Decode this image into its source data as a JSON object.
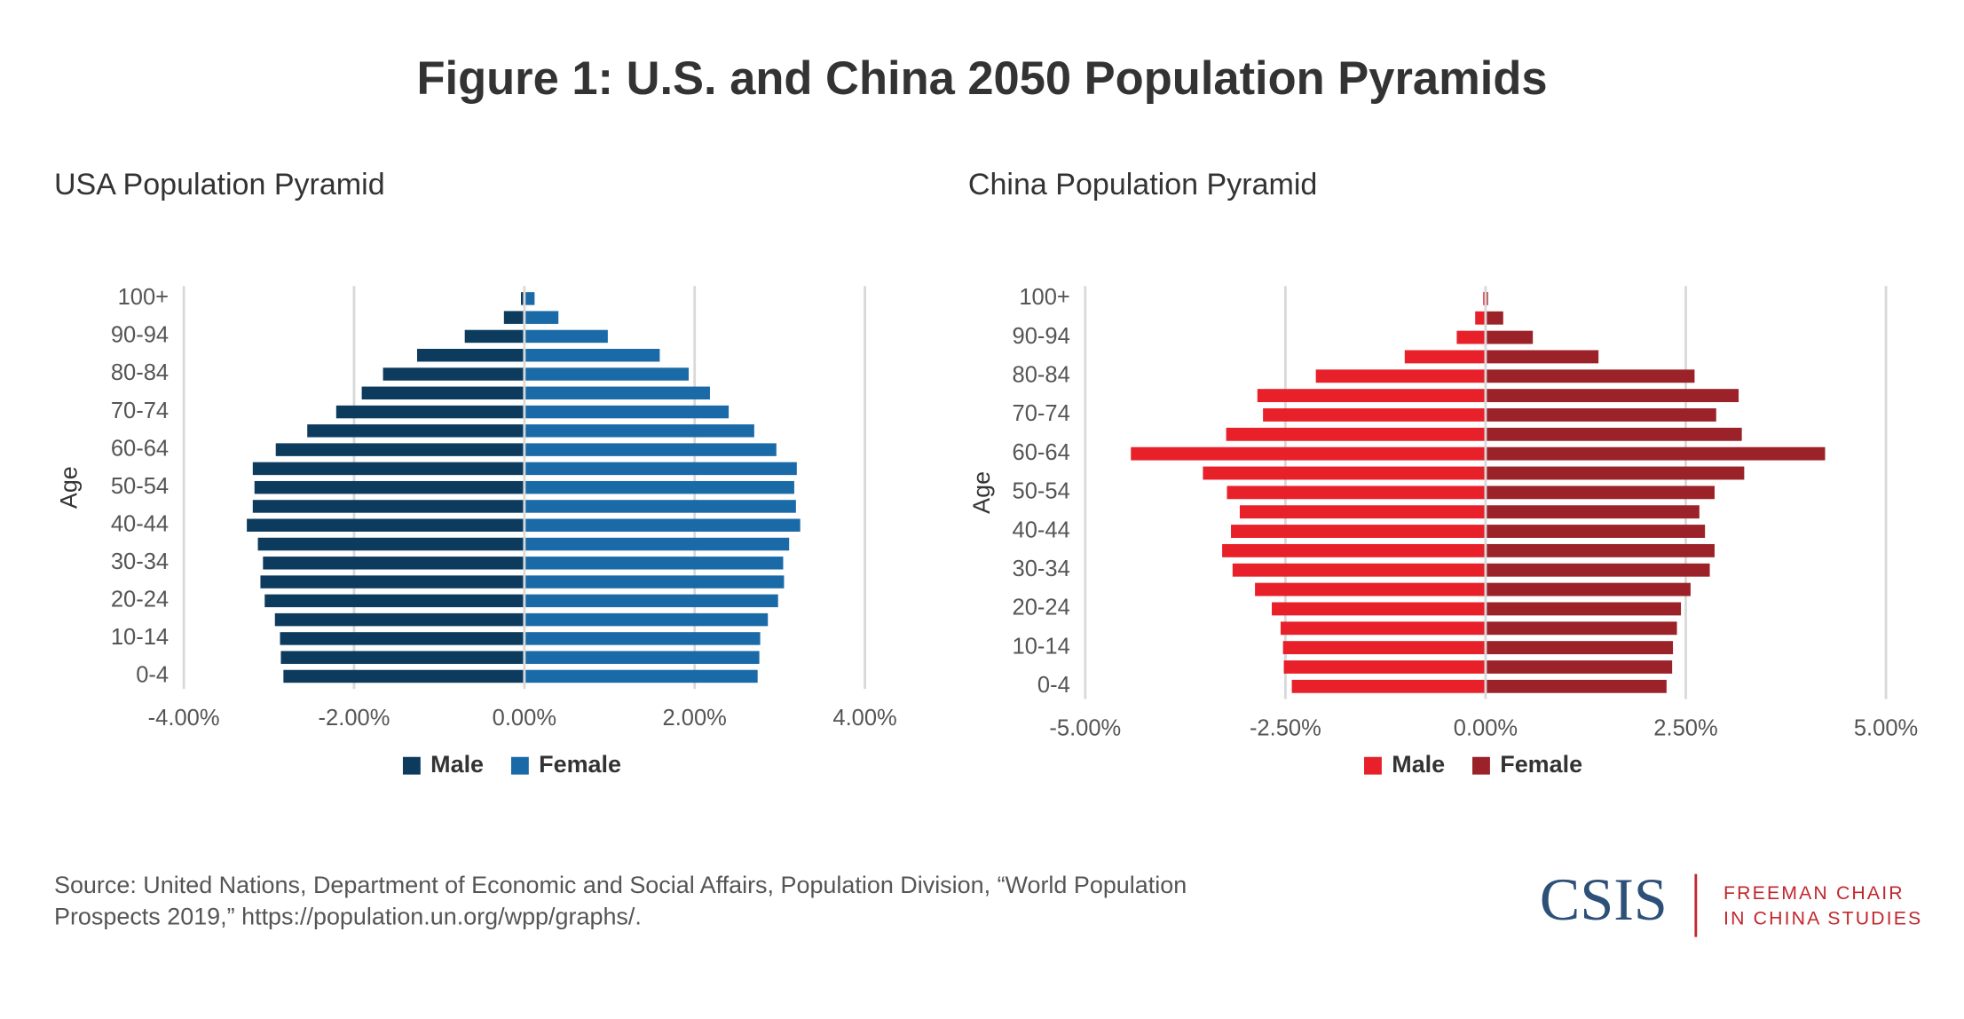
{
  "title": "Figure 1: U.S. and China 2050 Population Pyramids",
  "chart_data": [
    {
      "type": "pyramid",
      "title": "USA Population Pyramid",
      "ylabel": "Age",
      "categories": [
        "0-4",
        null,
        "10-14",
        null,
        "20-24",
        null,
        "30-34",
        null,
        "40-44",
        null,
        "50-54",
        null,
        "60-64",
        null,
        "70-74",
        null,
        "80-84",
        null,
        "90-94",
        null,
        "100+"
      ],
      "series": [
        {
          "name": "Male",
          "color": "#0d3b5e",
          "values": [
            -2.83,
            -2.86,
            -2.87,
            -2.93,
            -3.05,
            -3.1,
            -3.07,
            -3.13,
            -3.26,
            -3.19,
            -3.17,
            -3.19,
            -2.92,
            -2.55,
            -2.21,
            -1.91,
            -1.66,
            -1.26,
            -0.7,
            -0.24,
            -0.04
          ]
        },
        {
          "name": "Female",
          "color": "#1a6aa8",
          "values": [
            2.74,
            2.76,
            2.77,
            2.86,
            2.98,
            3.05,
            3.04,
            3.11,
            3.24,
            3.19,
            3.17,
            3.2,
            2.96,
            2.7,
            2.4,
            2.18,
            1.93,
            1.59,
            0.98,
            0.4,
            0.12
          ]
        }
      ],
      "xlim": [
        -4,
        4
      ],
      "xticks": [
        {
          "value": -4,
          "label": "-4.00%"
        },
        {
          "value": -2,
          "label": "-2.00%"
        },
        {
          "value": 0,
          "label": "0.00%"
        },
        {
          "value": 2,
          "label": "2.00%"
        },
        {
          "value": 4,
          "label": "4.00%"
        }
      ],
      "grid": true
    },
    {
      "type": "pyramid",
      "title": "China Population Pyramid",
      "ylabel": "Age",
      "categories": [
        "0-4",
        null,
        "10-14",
        null,
        "20-24",
        null,
        "30-34",
        null,
        "40-44",
        null,
        "50-54",
        null,
        "60-64",
        null,
        "70-74",
        null,
        "80-84",
        null,
        "90-94",
        null,
        "100+"
      ],
      "series": [
        {
          "name": "Male",
          "color": "#e8202a",
          "values": [
            -2.42,
            -2.52,
            -2.53,
            -2.56,
            -2.67,
            -2.88,
            -3.16,
            -3.29,
            -3.18,
            -3.07,
            -3.23,
            -3.53,
            -4.43,
            -3.24,
            -2.78,
            -2.85,
            -2.12,
            -1.01,
            -0.36,
            -0.13,
            -0.03
          ]
        },
        {
          "name": "Female",
          "color": "#9b2228",
          "values": [
            2.26,
            2.33,
            2.34,
            2.39,
            2.44,
            2.56,
            2.8,
            2.86,
            2.74,
            2.67,
            2.86,
            3.23,
            4.24,
            3.2,
            2.88,
            3.16,
            2.61,
            1.41,
            0.59,
            0.22,
            0.03
          ]
        }
      ],
      "xlim": [
        -5,
        5
      ],
      "xticks": [
        {
          "value": -5,
          "label": "-5.00%"
        },
        {
          "value": -2.5,
          "label": "-2.50%"
        },
        {
          "value": 0,
          "label": "0.00%"
        },
        {
          "value": 2.5,
          "label": "2.50%"
        },
        {
          "value": 5,
          "label": "5.00%"
        }
      ],
      "grid": true
    }
  ],
  "source": [
    "Source: United Nations, Department of Economic and Social Affairs, Population Division, “World Population",
    "Prospects 2019,” https://population.un.org/wpp/graphs/."
  ],
  "logo": {
    "name": "CSIS",
    "text": [
      "FREEMAN CHAIR",
      "IN CHINA STUDIES"
    ]
  }
}
